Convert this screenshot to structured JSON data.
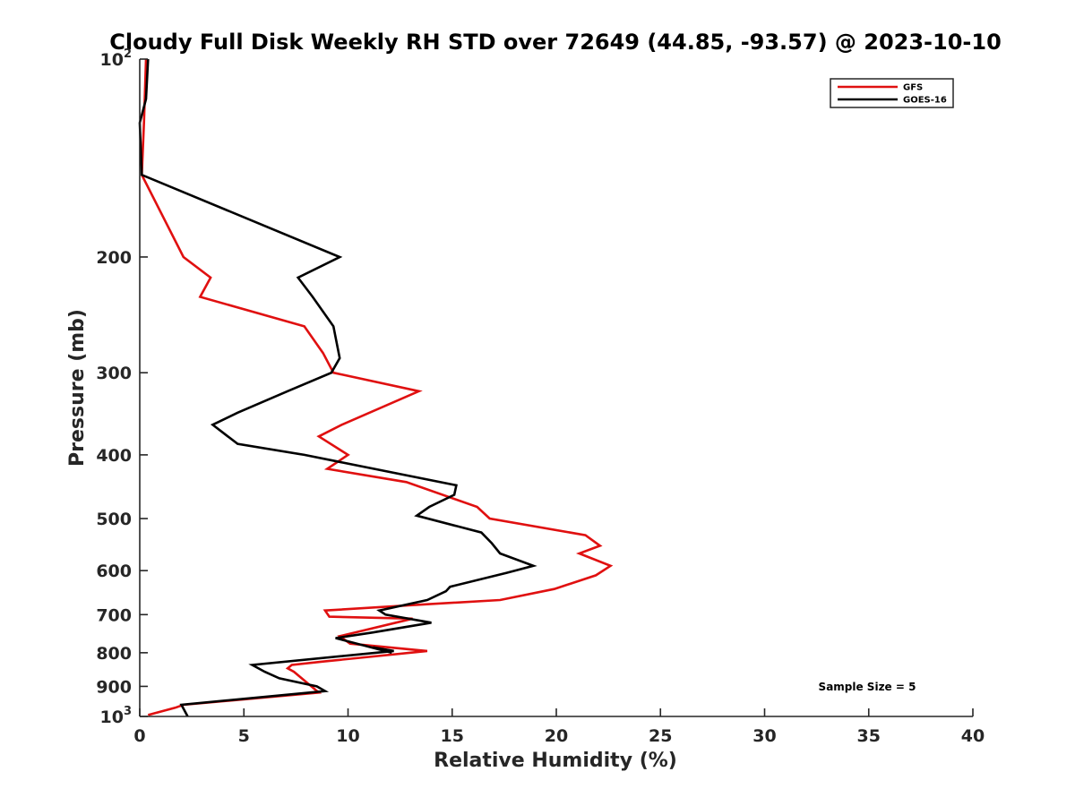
{
  "chart_data": {
    "type": "line",
    "title": "Cloudy Full Disk Weekly RH STD over 72649 (44.85, -93.57) @ 2023-10-10",
    "xlabel": "Relative Humidity (%)",
    "ylabel": "Pressure (mb)",
    "xlim": [
      0,
      40
    ],
    "ylim": [
      100,
      1000
    ],
    "yscale": "log",
    "y_reversed": true,
    "grid": false,
    "x_ticks": [
      {
        "value": 0,
        "label": "0"
      },
      {
        "value": 5,
        "label": "5"
      },
      {
        "value": 10,
        "label": "10"
      },
      {
        "value": 15,
        "label": "15"
      },
      {
        "value": 20,
        "label": "20"
      },
      {
        "value": 25,
        "label": "25"
      },
      {
        "value": 30,
        "label": "30"
      },
      {
        "value": 35,
        "label": "35"
      },
      {
        "value": 40,
        "label": "40"
      }
    ],
    "y_ticks": [
      {
        "value": 100,
        "label": "10",
        "sup": "2"
      },
      {
        "value": 200,
        "label": "200"
      },
      {
        "value": 300,
        "label": "300"
      },
      {
        "value": 400,
        "label": "400"
      },
      {
        "value": 500,
        "label": "500"
      },
      {
        "value": 600,
        "label": "600"
      },
      {
        "value": 700,
        "label": "700"
      },
      {
        "value": 800,
        "label": "800"
      },
      {
        "value": 900,
        "label": "900"
      },
      {
        "value": 1000,
        "label": "10",
        "sup": "3"
      }
    ],
    "legend": {
      "position": "top-right"
    },
    "annotation": "Sample Size = 5",
    "series": [
      {
        "name": "GFS",
        "color": "#e01010",
        "points": [
          [
            0.3,
            100
          ],
          [
            0.2,
            125
          ],
          [
            0.1,
            150
          ],
          [
            2.1,
            200
          ],
          [
            3.4,
            215
          ],
          [
            2.9,
            230
          ],
          [
            7.9,
            255
          ],
          [
            8.8,
            280
          ],
          [
            9.3,
            300
          ],
          [
            13.4,
            320
          ],
          [
            9.7,
            360
          ],
          [
            8.6,
            375
          ],
          [
            10.0,
            400
          ],
          [
            9.0,
            420
          ],
          [
            12.8,
            440
          ],
          [
            16.2,
            480
          ],
          [
            16.8,
            500
          ],
          [
            21.4,
            530
          ],
          [
            22.1,
            550
          ],
          [
            21.1,
            565
          ],
          [
            22.6,
            590
          ],
          [
            21.9,
            610
          ],
          [
            19.9,
            640
          ],
          [
            17.3,
            665
          ],
          [
            13.8,
            675
          ],
          [
            8.9,
            690
          ],
          [
            9.1,
            705
          ],
          [
            13.1,
            710
          ],
          [
            9.6,
            755
          ],
          [
            10.1,
            775
          ],
          [
            13.8,
            795
          ],
          [
            8.8,
            825
          ],
          [
            7.3,
            835
          ],
          [
            7.1,
            845
          ],
          [
            7.4,
            855
          ],
          [
            8.6,
            920
          ],
          [
            2.1,
            960
          ],
          [
            1.7,
            970
          ],
          [
            0.4,
            995
          ]
        ]
      },
      {
        "name": "GOES-16",
        "color": "#000000",
        "points": [
          [
            0.4,
            100
          ],
          [
            0.3,
            115
          ],
          [
            0.0,
            125
          ],
          [
            0.1,
            150
          ],
          [
            9.6,
            200
          ],
          [
            7.6,
            215
          ],
          [
            8.3,
            230
          ],
          [
            9.3,
            255
          ],
          [
            9.6,
            285
          ],
          [
            9.2,
            300
          ],
          [
            7.1,
            320
          ],
          [
            4.7,
            345
          ],
          [
            3.5,
            360
          ],
          [
            4.7,
            385
          ],
          [
            7.9,
            400
          ],
          [
            15.2,
            445
          ],
          [
            15.1,
            460
          ],
          [
            13.9,
            480
          ],
          [
            13.3,
            495
          ],
          [
            16.4,
            525
          ],
          [
            16.9,
            545
          ],
          [
            17.3,
            565
          ],
          [
            18.9,
            590
          ],
          [
            17.6,
            605
          ],
          [
            14.9,
            635
          ],
          [
            14.7,
            645
          ],
          [
            13.8,
            665
          ],
          [
            11.5,
            690
          ],
          [
            11.8,
            700
          ],
          [
            14.0,
            720
          ],
          [
            11.2,
            745
          ],
          [
            9.4,
            760
          ],
          [
            12.1,
            800
          ],
          [
            11.2,
            785
          ],
          [
            12.2,
            795
          ],
          [
            5.4,
            835
          ],
          [
            6.0,
            855
          ],
          [
            6.7,
            875
          ],
          [
            8.5,
            900
          ],
          [
            8.9,
            915
          ],
          [
            2.0,
            960
          ],
          [
            2.3,
            1000
          ]
        ]
      }
    ]
  }
}
